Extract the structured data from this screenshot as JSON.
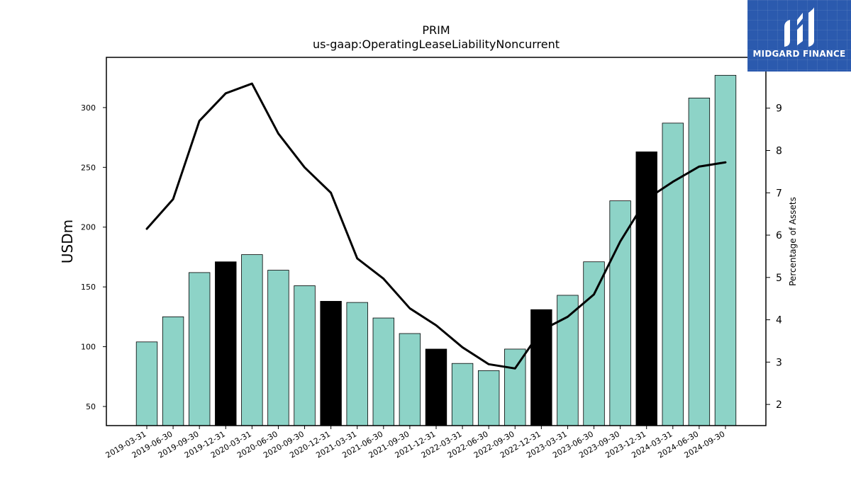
{
  "chart_data": {
    "type": "bar",
    "title": "PRIM",
    "subtitle": "us-gaap:OperatingLeaseLiabilityNoncurrent",
    "ylabel": "USDm",
    "y2label": "Percentage of Assets",
    "ylim": [
      34,
      342
    ],
    "y2lim": [
      1.5,
      10.2
    ],
    "yticks": [
      50,
      100,
      150,
      200,
      250,
      300
    ],
    "y2ticks": [
      2,
      3,
      4,
      5,
      6,
      7,
      8,
      9
    ],
    "grid": false,
    "categories": [
      "2019-03-31",
      "2019-06-30",
      "2019-09-30",
      "2019-12-31",
      "2020-03-31",
      "2020-06-30",
      "2020-09-30",
      "2020-12-31",
      "2021-03-31",
      "2021-06-30",
      "2021-09-30",
      "2021-12-31",
      "2022-03-31",
      "2022-06-30",
      "2022-09-30",
      "2022-12-31",
      "2023-03-31",
      "2023-06-30",
      "2023-09-30",
      "2023-12-31",
      "2024-03-31",
      "2024-06-30",
      "2024-09-30"
    ],
    "series": [
      {
        "type": "bar",
        "axis": "left",
        "values": [
          104,
          125,
          162,
          171,
          177,
          164,
          151,
          138,
          137,
          124,
          111,
          98,
          86,
          80,
          98,
          131,
          143,
          171,
          222,
          263,
          287,
          308,
          327
        ],
        "colors": [
          "#8dd3c7",
          "#8dd3c7",
          "#8dd3c7",
          "#000000",
          "#8dd3c7",
          "#8dd3c7",
          "#8dd3c7",
          "#000000",
          "#8dd3c7",
          "#8dd3c7",
          "#8dd3c7",
          "#000000",
          "#8dd3c7",
          "#8dd3c7",
          "#8dd3c7",
          "#000000",
          "#8dd3c7",
          "#8dd3c7",
          "#8dd3c7",
          "#000000",
          "#8dd3c7",
          "#8dd3c7",
          "#8dd3c7"
        ]
      },
      {
        "type": "line",
        "axis": "right",
        "color": "#000000",
        "values": [
          6.15,
          6.85,
          8.7,
          9.35,
          9.58,
          8.4,
          7.6,
          7.0,
          5.45,
          4.97,
          4.27,
          3.87,
          3.35,
          2.95,
          2.85,
          3.75,
          4.07,
          4.6,
          5.85,
          6.85,
          7.26,
          7.62,
          7.72
        ]
      }
    ]
  },
  "logo": {
    "text": "MIDGARD FINANCE",
    "bg": "#2b5aae"
  }
}
